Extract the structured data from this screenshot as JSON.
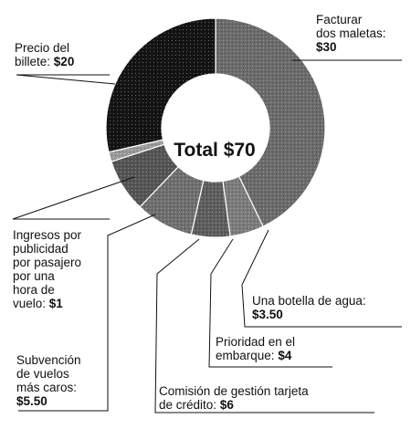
{
  "chart_data": {
    "type": "pie",
    "title": "",
    "center_label": "Total $70",
    "slices": [
      {
        "key": "facturar",
        "lines": [
          "Facturar",
          "dos maletas:"
        ],
        "value_label": "$30",
        "value": 30,
        "color": "#6b6b6b"
      },
      {
        "key": "botella",
        "lines": [
          "Una botella de agua:"
        ],
        "value_label": "$3.50",
        "value": 3.5,
        "color": "#7c7c7c"
      },
      {
        "key": "prioridad",
        "lines": [
          "Prioridad en el",
          "embarque:"
        ],
        "value_label": "$4",
        "value": 4,
        "color": "#5e5e5e"
      },
      {
        "key": "comision",
        "lines": [
          "Comisión de gestión tarjeta",
          "de crédito:"
        ],
        "value_label": "$6",
        "value": 6,
        "color": "#6f6f6f"
      },
      {
        "key": "subvencion",
        "lines": [
          "Subvención",
          "de vuelos",
          "más caros:"
        ],
        "value_label": "$5.50",
        "value": 5.5,
        "color": "#555555"
      },
      {
        "key": "ingresos",
        "lines": [
          "Ingresos por",
          "publicidad",
          "por pasajero",
          "por una",
          "hora de",
          "vuelo:"
        ],
        "value_label": "$1",
        "value": 1,
        "color": "#9a9a9a"
      },
      {
        "key": "precio",
        "lines": [
          "Precio del",
          "billete:"
        ],
        "value_label": "$20",
        "value": 20,
        "color": "#141414"
      }
    ]
  }
}
